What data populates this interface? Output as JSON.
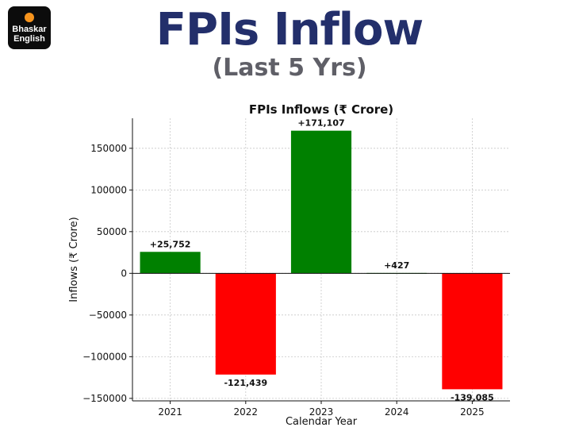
{
  "brand": {
    "line1": "Bhaskar",
    "line2": "English",
    "dot_color": "#f7941d",
    "bg_color": "#0c0c0c"
  },
  "headline": "FPIs Inflow",
  "subheadline": "(Last 5 Yrs)",
  "chart_data": {
    "type": "bar",
    "title": "FPIs Inflows (₹ Crore)",
    "xlabel": "Calendar Year",
    "ylabel": "Inflows (₹ Crore)",
    "categories": [
      "2021",
      "2022",
      "2023",
      "2024",
      "2025"
    ],
    "values": [
      25752,
      -121439,
      171107,
      427,
      -139085
    ],
    "data_labels": [
      "+25,752",
      "-121,439",
      "+171,107",
      "+427",
      "-139,085"
    ],
    "colors": [
      "#008000",
      "#ff0000",
      "#008000",
      "#008000",
      "#ff0000"
    ],
    "ylim": [
      -153000,
      186000
    ],
    "yticks": [
      150000,
      100000,
      50000,
      0,
      -50000,
      -100000,
      -150000
    ],
    "ytick_labels": [
      "150000",
      "100000",
      "50000",
      "0",
      "−50000",
      "−100000",
      "−150000"
    ],
    "grid": true
  }
}
